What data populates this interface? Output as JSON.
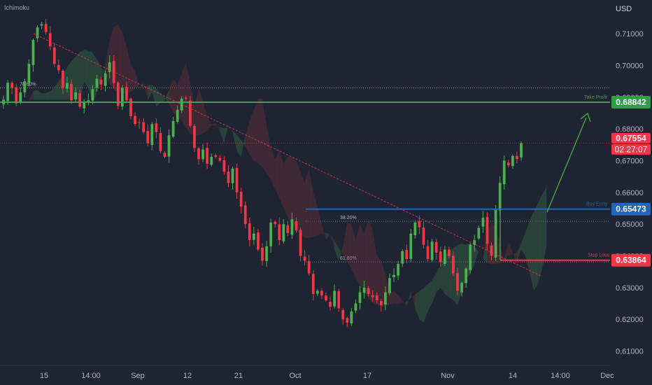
{
  "indicator_label": "Ichimoku",
  "currency_label": "USD",
  "chart_data": {
    "type": "candlestick",
    "y_axis": {
      "ticks": [
        "0.71000",
        "0.70000",
        "0.69000",
        "0.68000",
        "0.67000",
        "0.66000",
        "0.65000",
        "0.64000",
        "0.63000",
        "0.62000",
        "0.61000"
      ],
      "tick_values": [
        0.71,
        0.7,
        0.69,
        0.68,
        0.67,
        0.66,
        0.65,
        0.64,
        0.63,
        0.62,
        0.61
      ],
      "range": [
        0.6055,
        0.7195
      ]
    },
    "x_axis": {
      "ticks": [
        "15",
        "14:00",
        "Sep",
        "12",
        "21",
        "Oct",
        "17",
        "Nov",
        "14",
        "14:00",
        "Dec"
      ]
    },
    "price_labels": [
      {
        "name": "take-profit",
        "value": "0.68842",
        "color": "#2e9e44"
      },
      {
        "name": "current-price",
        "value": "0.67554",
        "color": "#f23645"
      },
      {
        "name": "countdown",
        "value": "02:27:07",
        "color": "#f23645"
      },
      {
        "name": "buy-entry",
        "value": "0.65473",
        "color": "#1e66b8"
      },
      {
        "name": "stop-loss",
        "value": "0.63864",
        "color": "#f23645"
      }
    ],
    "levels": [
      {
        "name": "take-profit-line",
        "label": "Take Profit",
        "value": 0.68842,
        "color": "#43a047"
      },
      {
        "name": "buy-entry-line",
        "label": "Buy Entry",
        "value": 0.65473,
        "color": "#1e66b8"
      },
      {
        "name": "stop-loss-line",
        "label": "Stop Loss",
        "value": 0.63864,
        "color": "#f23645"
      }
    ],
    "fib_levels": [
      {
        "label": "78.60%",
        "value": 0.6929
      },
      {
        "label": "38.20%",
        "value": 0.6509
      },
      {
        "label": "61.80%",
        "value": 0.6381
      }
    ],
    "current_price": 0.67554,
    "close_series": [
      0.6892,
      0.6945,
      0.693,
      0.688,
      0.6915,
      0.695,
      0.7005,
      0.708,
      0.712,
      0.713,
      0.7105,
      0.706,
      0.7005,
      0.6985,
      0.693,
      0.6945,
      0.689,
      0.6915,
      0.687,
      0.6882,
      0.689,
      0.6925,
      0.6958,
      0.694,
      0.6975,
      0.701,
      0.6945,
      0.6872,
      0.693,
      0.689,
      0.684,
      0.6815,
      0.682,
      0.679,
      0.6755,
      0.6815,
      0.679,
      0.673,
      0.6712,
      0.678,
      0.6825,
      0.686,
      0.6895,
      0.6895,
      0.681,
      0.674,
      0.6705,
      0.6735,
      0.669,
      0.6712,
      0.6712,
      0.67,
      0.6665,
      0.663,
      0.6675,
      0.66,
      0.6555,
      0.65,
      0.645,
      0.647,
      0.642,
      0.6385,
      0.643,
      0.6505,
      0.65,
      0.645,
      0.65,
      0.6472,
      0.6515,
      0.648,
      0.64,
      0.6385,
      0.6345,
      0.628,
      0.629,
      0.6275,
      0.626,
      0.624,
      0.629,
      0.6235,
      0.62,
      0.619,
      0.6225,
      0.625,
      0.6285,
      0.63,
      0.628,
      0.627,
      0.626,
      0.6245,
      0.6285,
      0.633,
      0.634,
      0.6375,
      0.6415,
      0.639,
      0.647,
      0.6505,
      0.649,
      0.6435,
      0.639,
      0.6445,
      0.641,
      0.638,
      0.642,
      0.64,
      0.6345,
      0.629,
      0.6315,
      0.636,
      0.6435,
      0.645,
      0.6488,
      0.652,
      0.6438,
      0.64,
      0.6545,
      0.663,
      0.67,
      0.6685,
      0.6715,
      0.6705,
      0.6755
    ]
  }
}
